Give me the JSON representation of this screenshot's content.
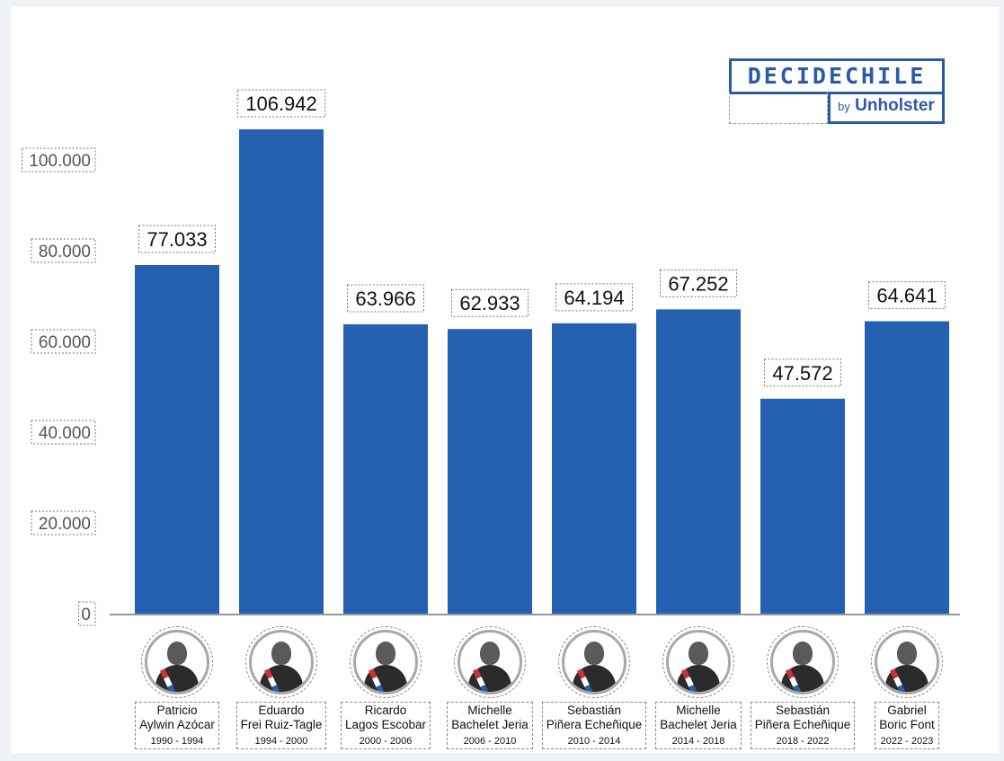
{
  "chart_data": {
    "type": "bar",
    "title": "",
    "xlabel": "",
    "ylabel": "",
    "ylim": [
      0,
      115000
    ],
    "yticks": [
      0,
      20000,
      40000,
      60000,
      80000,
      100000
    ],
    "ytick_labels": [
      "0",
      "20.000",
      "40.000",
      "60.000",
      "80.000",
      "100.000"
    ],
    "bar_color": "#2660b0",
    "categories": [
      {
        "name": "Patricio\nAylwin Azócar",
        "period": "1990 - 1994"
      },
      {
        "name": "Eduardo\nFrei Ruiz-Tagle",
        "period": "1994 - 2000"
      },
      {
        "name": "Ricardo\nLagos Escobar",
        "period": "2000 - 2006"
      },
      {
        "name": "Michelle\nBachelet Jeria",
        "period": "2006 - 2010"
      },
      {
        "name": "Sebastián\nPiñera Echeñique",
        "period": "2010 - 2014"
      },
      {
        "name": "Michelle\nBachelet Jeria",
        "period": "2014 - 2018"
      },
      {
        "name": "Sebastián\nPiñera Echeñique",
        "period": "2018 - 2022"
      },
      {
        "name": "Gabriel\nBoric Font",
        "period": "2022 - 2023"
      }
    ],
    "values": [
      77033,
      106942,
      63966,
      62933,
      64194,
      67252,
      47572,
      64641
    ],
    "value_labels": [
      "77.033",
      "106.942",
      "63.966",
      "62.933",
      "64.194",
      "67.252",
      "47.572",
      "64.641"
    ],
    "grid": false,
    "legend": "none"
  },
  "logo": {
    "main": "DECIDECHILE",
    "by": "by",
    "brand": "Unholster",
    "color": "#2a5aa8"
  },
  "icons": [
    "president-portrait-icon"
  ]
}
